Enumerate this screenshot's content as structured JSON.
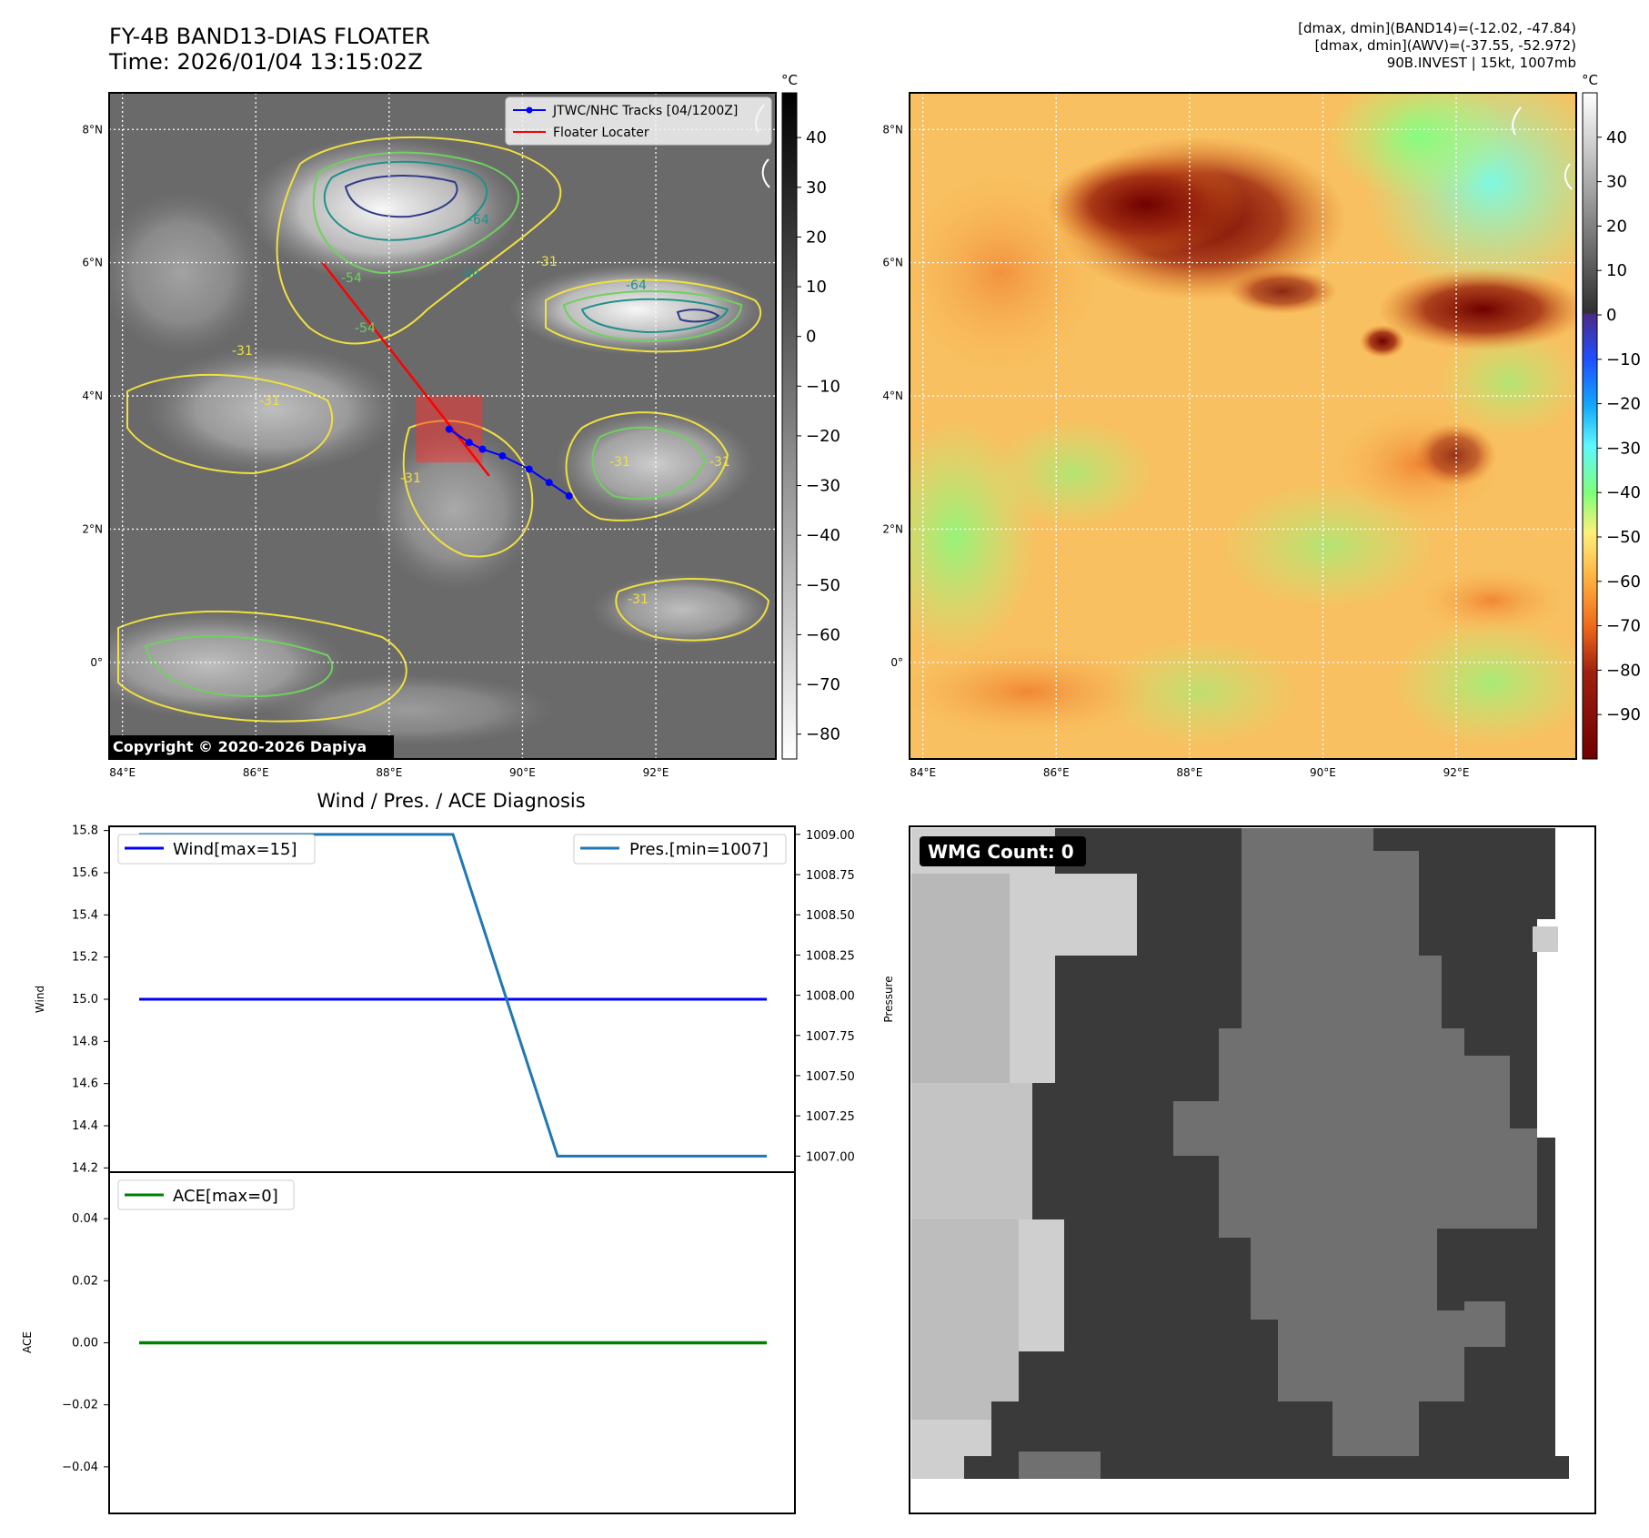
{
  "header": {
    "title_line1": "FY-4B BAND13-DIAS FLOATER",
    "title_line2": "Time: 2026/01/04 13:15:02Z",
    "info_lines": [
      "[dmax, dmin](BAND14)=(-12.02, -47.84)",
      "[dmax, dmin](AWV)=(-37.55, -52.972)",
      "90B.INVEST | 15kt, 1007mb"
    ]
  },
  "maps": {
    "lon_ticks": [
      "84°E",
      "86°E",
      "88°E",
      "90°E",
      "92°E"
    ],
    "lat_ticks": [
      "8°N",
      "6°N",
      "4°N",
      "2°N",
      "0°"
    ],
    "lon_values": [
      84,
      86,
      88,
      90,
      92
    ],
    "lat_values": [
      8,
      6,
      4,
      2,
      0
    ],
    "extent": {
      "lon_min": 83.8,
      "lon_max": 93.8,
      "lat_min": -1.45,
      "lat_max": 8.55
    },
    "left": {
      "legend": [
        "JTWC/NHC Tracks [04/1200Z]",
        "Floater Locater"
      ],
      "copyright": "Copyright © 2020-2026 Dapiya",
      "contour_labels": [
        "-64",
        "-64",
        "-64",
        "-54",
        "-54",
        "-31",
        "-31",
        "-31",
        "-31",
        "-31",
        "-31",
        "-31"
      ],
      "colorbar_unit": "°C",
      "colorbar_ticks": [
        "40",
        "30",
        "20",
        "10",
        "0",
        "−10",
        "−20",
        "−30",
        "−40",
        "−50",
        "−60",
        "−70",
        "−80"
      ],
      "colorbar_values": [
        40,
        30,
        20,
        10,
        0,
        -10,
        -20,
        -30,
        -40,
        -50,
        -60,
        -70,
        -80
      ],
      "colorbar_range": [
        -85,
        49
      ],
      "track": {
        "lon": [
          88.9,
          89.2,
          89.4,
          89.7,
          90.1,
          90.4,
          90.7
        ],
        "lat": [
          3.5,
          3.3,
          3.2,
          3.1,
          2.9,
          2.7,
          2.5
        ]
      },
      "locater": {
        "lon": [
          87.0,
          89.5
        ],
        "lat": [
          6.0,
          2.8
        ]
      },
      "locater_box": {
        "lon": [
          88.4,
          89.4
        ],
        "lat": [
          3.0,
          4.0
        ]
      },
      "colors": {
        "track": "#0000ff",
        "locater": "#ff0000",
        "contour_warm": "#f0e040",
        "contour_mid": "#70d060",
        "contour_cold": "#20908a",
        "contour_coldest": "#303a8a"
      }
    },
    "right": {
      "colorbar_unit": "°C",
      "colorbar_ticks": [
        "40",
        "30",
        "20",
        "10",
        "0",
        "−10",
        "−20",
        "−30",
        "−40",
        "−50",
        "−60",
        "−70",
        "−80",
        "−90"
      ],
      "colorbar_values": [
        40,
        30,
        20,
        10,
        0,
        -10,
        -20,
        -30,
        -40,
        -50,
        -60,
        -70,
        -80,
        -90
      ],
      "colorbar_range": [
        -100,
        50
      ]
    }
  },
  "chart_data": [
    {
      "type": "line",
      "title": "Wind / Pres. / ACE Diagnosis",
      "ylabel": "Wind",
      "y2label": "Pressure",
      "ylim": [
        14.18,
        15.82
      ],
      "y2lim": [
        1006.9,
        1009.05
      ],
      "x": [
        0,
        1,
        2,
        3,
        4,
        5,
        6
      ],
      "series": [
        {
          "name": "Wind[max=15]",
          "axis": "left",
          "color": "#0000ff",
          "values": [
            15,
            15,
            15,
            15,
            15,
            15,
            15
          ]
        },
        {
          "name": "Pres.[min=1007]",
          "axis": "right",
          "color": "#1f77b4",
          "values": [
            1009,
            1009,
            1009,
            1009,
            1007,
            1007,
            1007
          ]
        }
      ],
      "yticks": [
        "14.2",
        "14.4",
        "14.6",
        "14.8",
        "15.0",
        "15.2",
        "15.4",
        "15.6",
        "15.8"
      ],
      "yticks_values": [
        14.2,
        14.4,
        14.6,
        14.8,
        15.0,
        15.2,
        15.4,
        15.6,
        15.8
      ],
      "y2ticks": [
        "1007.00",
        "1007.25",
        "1007.50",
        "1007.75",
        "1008.00",
        "1008.25",
        "1008.50",
        "1008.75",
        "1009.00"
      ],
      "y2ticks_values": [
        1007.0,
        1007.25,
        1007.5,
        1007.75,
        1008.0,
        1008.25,
        1008.5,
        1008.75,
        1009.0
      ]
    },
    {
      "type": "line",
      "ylabel": "ACE",
      "ylim": [
        -0.055,
        0.055
      ],
      "x": [
        0,
        1,
        2,
        3,
        4,
        5,
        6
      ],
      "series": [
        {
          "name": "ACE[max=0]",
          "color": "#008000",
          "values": [
            0,
            0,
            0,
            0,
            0,
            0,
            0
          ]
        }
      ],
      "yticks": [
        "−0.04",
        "−0.02",
        "0.00",
        "0.02",
        "0.04"
      ],
      "yticks_values": [
        -0.04,
        -0.02,
        0.0,
        0.02,
        0.04
      ]
    }
  ],
  "wmg": {
    "label": "WMG Count: 0"
  }
}
